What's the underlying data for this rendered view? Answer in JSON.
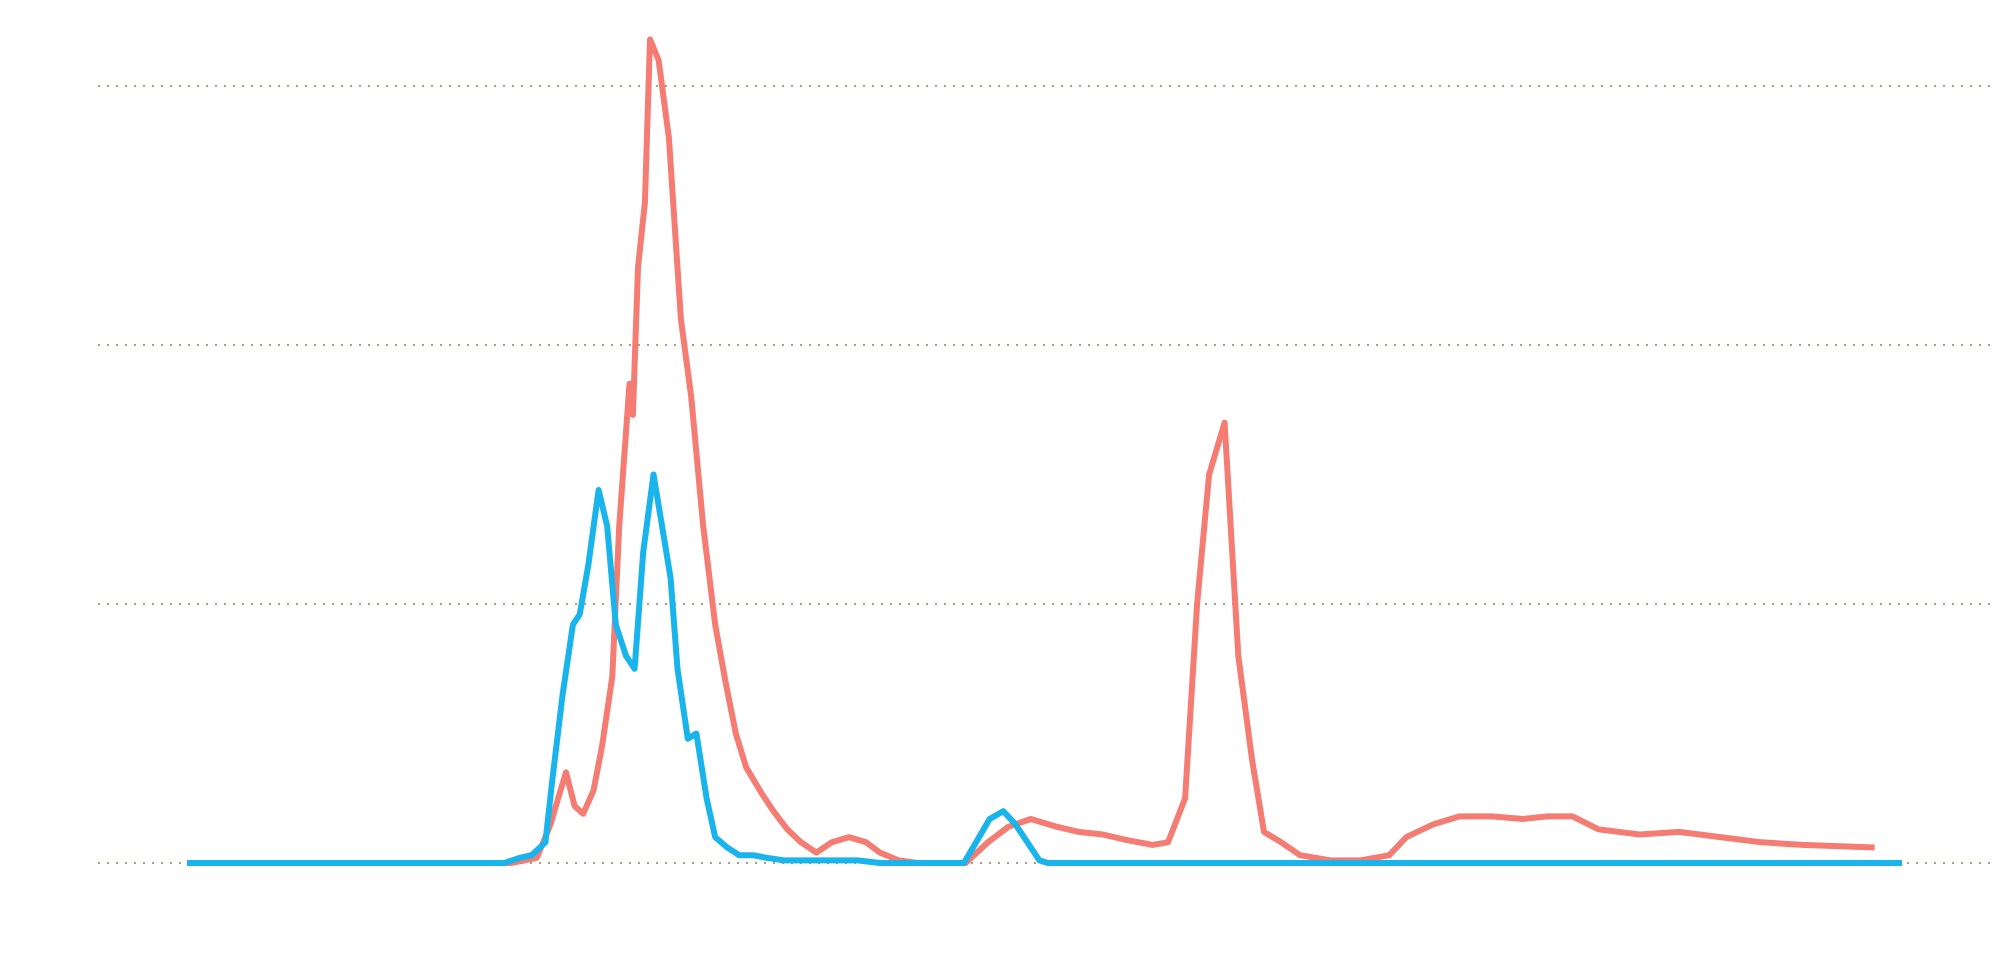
{
  "chart_data": {
    "type": "line",
    "title": "",
    "xlabel": "",
    "ylabel": "",
    "xlim": [
      0,
      100
    ],
    "ylim": [
      0,
      3.0
    ],
    "y_grid": [
      0,
      1,
      2,
      3
    ],
    "grid": "horizontal-dotted",
    "legend": "none",
    "series": [
      {
        "color": "#f47c72",
        "points": [
          [
            0,
            0
          ],
          [
            18.9,
            0
          ],
          [
            20.4,
            0.02
          ],
          [
            21.2,
            0.15
          ],
          [
            21.6,
            0.24
          ],
          [
            22.1,
            0.35
          ],
          [
            22.6,
            0.22
          ],
          [
            23.1,
            0.19
          ],
          [
            23.7,
            0.28
          ],
          [
            24.2,
            0.45
          ],
          [
            24.8,
            0.72
          ],
          [
            25.2,
            1.3
          ],
          [
            25.8,
            1.85
          ],
          [
            26.0,
            1.73
          ],
          [
            26.3,
            2.3
          ],
          [
            26.7,
            2.55
          ],
          [
            27.0,
            3.18
          ],
          [
            27.5,
            3.1
          ],
          [
            28.1,
            2.8
          ],
          [
            28.8,
            2.1
          ],
          [
            29.4,
            1.8
          ],
          [
            30.1,
            1.3
          ],
          [
            30.8,
            0.92
          ],
          [
            31.4,
            0.7
          ],
          [
            32.0,
            0.5
          ],
          [
            32.6,
            0.37
          ],
          [
            33.5,
            0.27
          ],
          [
            34.2,
            0.2
          ],
          [
            35.0,
            0.13
          ],
          [
            35.8,
            0.08
          ],
          [
            36.7,
            0.04
          ],
          [
            37.6,
            0.08
          ],
          [
            38.6,
            0.1
          ],
          [
            39.6,
            0.08
          ],
          [
            40.4,
            0.04
          ],
          [
            41.5,
            0.01
          ],
          [
            42.6,
            0
          ],
          [
            44.0,
            0
          ],
          [
            45.4,
            0
          ],
          [
            46.7,
            0.08
          ],
          [
            47.9,
            0.14
          ],
          [
            49.2,
            0.17
          ],
          [
            50.7,
            0.14
          ],
          [
            52.0,
            0.12
          ],
          [
            53.4,
            0.11
          ],
          [
            54.7,
            0.09
          ],
          [
            56.3,
            0.07
          ],
          [
            57.2,
            0.08
          ],
          [
            58.2,
            0.25
          ],
          [
            58.9,
            1.0
          ],
          [
            59.6,
            1.5
          ],
          [
            60.5,
            1.7
          ],
          [
            61.3,
            0.8
          ],
          [
            62.1,
            0.4
          ],
          [
            62.8,
            0.12
          ],
          [
            63.8,
            0.08
          ],
          [
            64.9,
            0.03
          ],
          [
            66.7,
            0.01
          ],
          [
            68.4,
            0.01
          ],
          [
            70.1,
            0.03
          ],
          [
            71.1,
            0.1
          ],
          [
            72.7,
            0.15
          ],
          [
            74.2,
            0.18
          ],
          [
            76.1,
            0.18
          ],
          [
            77.9,
            0.17
          ],
          [
            79.3,
            0.18
          ],
          [
            80.8,
            0.18
          ],
          [
            82.3,
            0.13
          ],
          [
            84.7,
            0.11
          ],
          [
            87.0,
            0.12
          ],
          [
            89.4,
            0.1
          ],
          [
            91.8,
            0.08
          ],
          [
            94.2,
            0.07
          ],
          [
            98.4,
            0.06
          ]
        ]
      },
      {
        "color": "#19b4eb",
        "points": [
          [
            0,
            0
          ],
          [
            18.5,
            0
          ],
          [
            19.4,
            0.02
          ],
          [
            20.1,
            0.03
          ],
          [
            20.9,
            0.08
          ],
          [
            21.3,
            0.32
          ],
          [
            21.9,
            0.65
          ],
          [
            22.5,
            0.92
          ],
          [
            22.9,
            0.96
          ],
          [
            23.4,
            1.15
          ],
          [
            24.0,
            1.44
          ],
          [
            24.5,
            1.3
          ],
          [
            25.0,
            0.92
          ],
          [
            25.6,
            0.8
          ],
          [
            26.1,
            0.75
          ],
          [
            26.6,
            1.2
          ],
          [
            27.2,
            1.5
          ],
          [
            27.7,
            1.3
          ],
          [
            28.2,
            1.1
          ],
          [
            28.6,
            0.75
          ],
          [
            29.2,
            0.48
          ],
          [
            29.7,
            0.5
          ],
          [
            30.3,
            0.25
          ],
          [
            30.8,
            0.1
          ],
          [
            31.5,
            0.06
          ],
          [
            32.2,
            0.03
          ],
          [
            33.0,
            0.03
          ],
          [
            33.8,
            0.02
          ],
          [
            34.8,
            0.01
          ],
          [
            36.2,
            0.01
          ],
          [
            37.7,
            0.01
          ],
          [
            39.1,
            0.01
          ],
          [
            40.4,
            0.0
          ],
          [
            42.4,
            0
          ],
          [
            44.0,
            0
          ],
          [
            45.3,
            0.0
          ],
          [
            46.1,
            0.09
          ],
          [
            46.8,
            0.17
          ],
          [
            47.6,
            0.2
          ],
          [
            48.3,
            0.15
          ],
          [
            49.1,
            0.07
          ],
          [
            49.7,
            0.01
          ],
          [
            50.2,
            0
          ],
          [
            60,
            0
          ],
          [
            75,
            0
          ],
          [
            100,
            0
          ]
        ]
      }
    ]
  }
}
